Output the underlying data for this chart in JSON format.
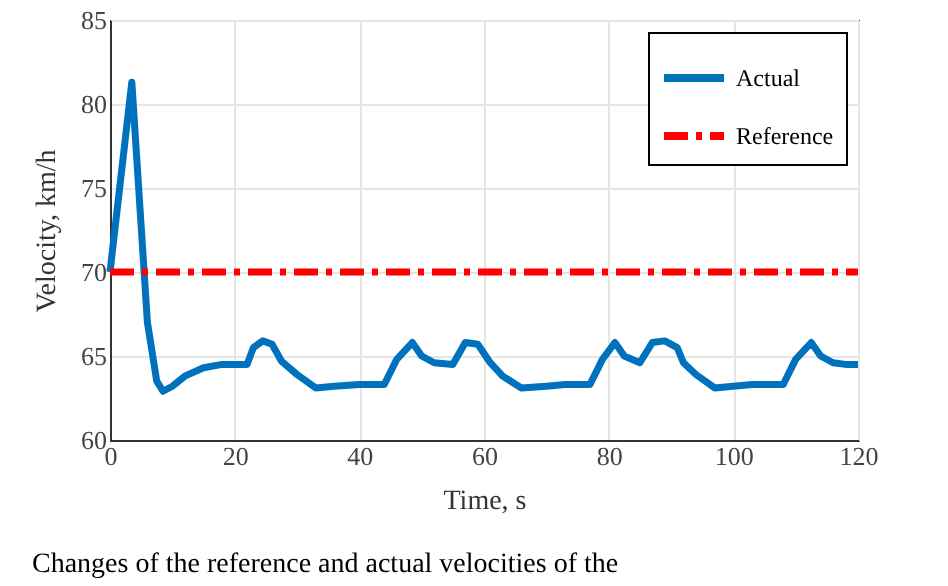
{
  "chart_data": {
    "type": "line",
    "xlabel": "Time, s",
    "ylabel": "Velocity, km/h",
    "xlim": [
      0,
      120
    ],
    "xticks": [
      0,
      20,
      40,
      60,
      80,
      100,
      120
    ],
    "ylim": [
      60,
      85
    ],
    "yticks": [
      60,
      65,
      70,
      75,
      80,
      85
    ],
    "grid": true,
    "legend": "top right",
    "annotations": [
      "Changes of the reference and actual velocities of the"
    ],
    "series": [
      {
        "name": "Actual",
        "color": "#0072bd",
        "line_style": "solid",
        "x": [
          0,
          3.5,
          6,
          7.5,
          8.5,
          10,
          12,
          15,
          18,
          22,
          23,
          24.5,
          26,
          27.5,
          30,
          33,
          36,
          40,
          44,
          46,
          48.5,
          50,
          52,
          55,
          57,
          59,
          61,
          63,
          66,
          70,
          73,
          77,
          79,
          81,
          82.5,
          85,
          87,
          89,
          91,
          92,
          94,
          97,
          100,
          103,
          108,
          110,
          112.5,
          114,
          116,
          118,
          120
        ],
        "values": [
          70,
          81.3,
          67,
          63.5,
          62.9,
          63.2,
          63.8,
          64.3,
          64.5,
          64.5,
          65.5,
          65.9,
          65.7,
          64.7,
          63.9,
          63.1,
          63.2,
          63.3,
          63.3,
          64.8,
          65.8,
          65.0,
          64.6,
          64.5,
          65.8,
          65.7,
          64.6,
          63.8,
          63.1,
          63.2,
          63.3,
          63.3,
          64.8,
          65.8,
          65.0,
          64.6,
          65.8,
          65.9,
          65.5,
          64.6,
          63.9,
          63.1,
          63.2,
          63.3,
          63.3,
          64.8,
          65.8,
          65.0,
          64.6,
          64.5,
          64.5
        ]
      },
      {
        "name": "Reference",
        "color": "#ff0000",
        "line_style": "dashed",
        "x": [
          0,
          120
        ],
        "values": [
          70,
          70
        ]
      }
    ]
  }
}
